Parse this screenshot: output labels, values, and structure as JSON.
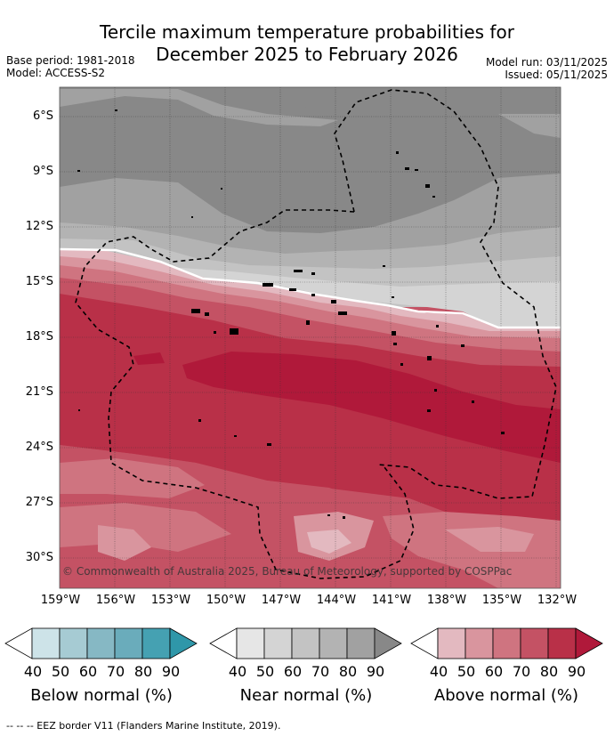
{
  "title": {
    "line1": "Tercile maximum temperature probabilities for",
    "line2": "December 2025 to February 2026"
  },
  "meta": {
    "base_period": "Base period: 1981-2018",
    "model": "Model: ACCESS-S2",
    "model_run": "Model run: 03/11/2025",
    "issued": "Issued: 05/11/2025"
  },
  "map": {
    "lat_labels": [
      "6°S",
      "9°S",
      "12°S",
      "15°S",
      "18°S",
      "21°S",
      "24°S",
      "27°S",
      "30°S"
    ],
    "lon_labels": [
      "159°W",
      "156°W",
      "153°W",
      "150°W",
      "147°W",
      "144°W",
      "141°W",
      "138°W",
      "135°W",
      "132°W"
    ],
    "copyright": "© Commonwealth of Australia 2025, Bureau of Meteorology, supported by COSPPac"
  },
  "legends": [
    {
      "title": "Below normal (%)",
      "ticks": [
        "40",
        "50",
        "60",
        "70",
        "80",
        "90"
      ],
      "colors": [
        "#ffffff",
        "#cde3e8",
        "#a6cbd3",
        "#86b8c4",
        "#6aacbb",
        "#45a1b2",
        "#2f97a9"
      ]
    },
    {
      "title": "Near normal (%)",
      "ticks": [
        "40",
        "50",
        "60",
        "70",
        "80",
        "90"
      ],
      "colors": [
        "#ffffff",
        "#e6e6e6",
        "#d4d4d4",
        "#c3c3c3",
        "#b3b3b3",
        "#a1a1a1",
        "#888888"
      ]
    },
    {
      "title": "Above normal (%)",
      "ticks": [
        "40",
        "50",
        "60",
        "70",
        "80",
        "90"
      ],
      "colors": [
        "#ffffff",
        "#e3b9c0",
        "#d9959e",
        "#cf7480",
        "#c45264",
        "#b93048",
        "#b0193a"
      ]
    }
  ],
  "footnote": "-- -- -- EEZ border V11 (Flanders Marine Institute, 2019)."
}
